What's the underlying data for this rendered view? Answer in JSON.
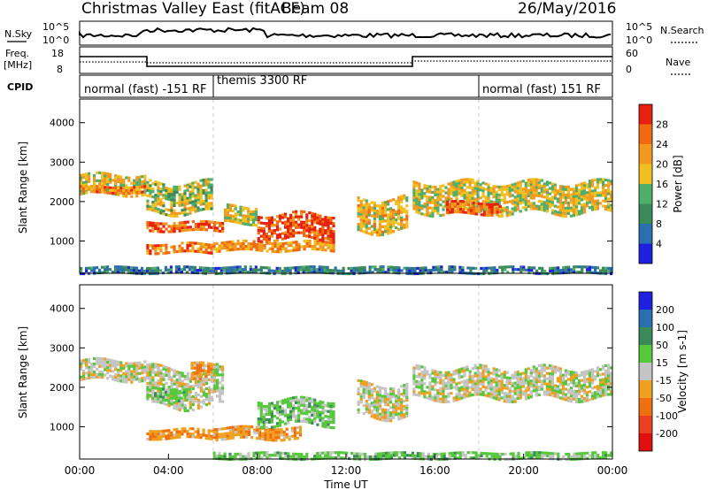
{
  "header": {
    "title": "Christmas Valley East (fitACF)",
    "beam": "Beam 08",
    "date": "26/May/2016"
  },
  "top_panels": {
    "nsky": {
      "label": "N.Sky",
      "tick_top": "10^5",
      "tick_bottom": "10^0",
      "right_tick_top": "10^5",
      "right_tick_bottom": "10^0",
      "right_label": "N.Search"
    },
    "freq": {
      "label_line1": "Freq.",
      "label_line2": "[MHz]",
      "ticks": [
        "18",
        "8"
      ],
      "right_ticks": [
        "60",
        "0"
      ],
      "right_label": "Nave"
    },
    "cpid": {
      "label": "CPID",
      "modes": [
        "normal (fast) -151 RF",
        "themis 3300 RF",
        "normal (fast) 151 RF"
      ]
    }
  },
  "colors": {
    "power": [
      "#2020e0",
      "#2a6fb0",
      "#3b8a5a",
      "#4fae6a",
      "#f0c020",
      "#f29a20",
      "#f06a10",
      "#e82010"
    ],
    "velocity": [
      "#2020e0",
      "#2a6fb0",
      "#3b8a5a",
      "#56c83c",
      "#c4c4c4",
      "#f0a020",
      "#f07010",
      "#e84020",
      "#e01010"
    ]
  },
  "chart_data": [
    {
      "type": "heatmap",
      "name": "power",
      "xlabel": "",
      "ylabel": "Slant Range [km]",
      "colorbar_label": "Power [dB]",
      "colorbar_ticks": [
        "28",
        "24",
        "20",
        "16",
        "12",
        "8",
        "4"
      ],
      "colorbar_range": [
        0,
        32
      ],
      "ylim": [
        180,
        4600
      ],
      "yticks": [
        "4000",
        "3000",
        "2000",
        "1000"
      ],
      "xlim_hours": [
        0,
        24
      ],
      "regions": [
        {
          "t0": 0.0,
          "t1": 3.0,
          "r0": 2150,
          "r1": 2700,
          "db": 18
        },
        {
          "t0": 0.0,
          "t1": 3.0,
          "r0": 2200,
          "r1": 2400,
          "db": 24
        },
        {
          "t0": 3.0,
          "t1": 6.0,
          "r0": 1700,
          "r1": 2500,
          "db": 16
        },
        {
          "t0": 3.0,
          "t1": 6.5,
          "r0": 1250,
          "r1": 1500,
          "db": 26
        },
        {
          "t0": 3.0,
          "t1": 6.0,
          "r0": 650,
          "r1": 950,
          "db": 24
        },
        {
          "t0": 6.0,
          "t1": 11.5,
          "r0": 700,
          "r1": 1000,
          "db": 22
        },
        {
          "t0": 8.0,
          "t1": 11.5,
          "r0": 1000,
          "r1": 1700,
          "db": 28
        },
        {
          "t0": 6.5,
          "t1": 8.0,
          "r0": 1400,
          "r1": 1900,
          "db": 18
        },
        {
          "t0": 12.5,
          "t1": 14.8,
          "r0": 1200,
          "r1": 2100,
          "db": 20
        },
        {
          "t0": 15.0,
          "t1": 24.0,
          "r0": 1700,
          "r1": 2500,
          "db": 18
        },
        {
          "t0": 16.5,
          "t1": 19.0,
          "r0": 1650,
          "r1": 2000,
          "db": 26
        },
        {
          "t0": 0.0,
          "t1": 24.0,
          "r0": 190,
          "r1": 360,
          "db": 8
        }
      ]
    },
    {
      "type": "heatmap",
      "name": "velocity",
      "xlabel": "Time UT",
      "ylabel": "Slant Range [km]",
      "colorbar_label": "Velocity [m s-1]",
      "colorbar_ticks": [
        "200",
        "100",
        "50",
        "15",
        "-15",
        "-50",
        "-100",
        "-200"
      ],
      "ylim": [
        180,
        4600
      ],
      "yticks": [
        "4000",
        "3000",
        "2000",
        "1000"
      ],
      "xlim_hours": [
        0,
        24
      ],
      "xticks": [
        "00:00",
        "04:00",
        "08:00",
        "12:00",
        "16:00",
        "20:00",
        "00:00"
      ],
      "regions": [
        {
          "t0": 0.0,
          "t1": 3.0,
          "r0": 2150,
          "r1": 2700,
          "v": 0
        },
        {
          "t0": 3.0,
          "t1": 6.5,
          "r0": 1500,
          "r1": 2500,
          "v": 0
        },
        {
          "t0": 3.0,
          "t1": 5.0,
          "r0": 1650,
          "r1": 2000,
          "v": 30
        },
        {
          "t0": 5.0,
          "t1": 6.0,
          "r0": 2100,
          "r1": 2600,
          "v": -40
        },
        {
          "t0": 3.0,
          "t1": 6.0,
          "r0": 650,
          "r1": 950,
          "v": -40
        },
        {
          "t0": 6.0,
          "t1": 10.0,
          "r0": 650,
          "r1": 1000,
          "v": -40
        },
        {
          "t0": 8.0,
          "t1": 11.5,
          "r0": 1000,
          "r1": 1700,
          "v": 30
        },
        {
          "t0": 12.5,
          "t1": 14.8,
          "r0": 1200,
          "r1": 2100,
          "v": 0
        },
        {
          "t0": 15.0,
          "t1": 24.0,
          "r0": 1700,
          "r1": 2500,
          "v": 0
        },
        {
          "t0": 6.0,
          "t1": 24.0,
          "r0": 190,
          "r1": 360,
          "v": 30
        }
      ]
    }
  ]
}
